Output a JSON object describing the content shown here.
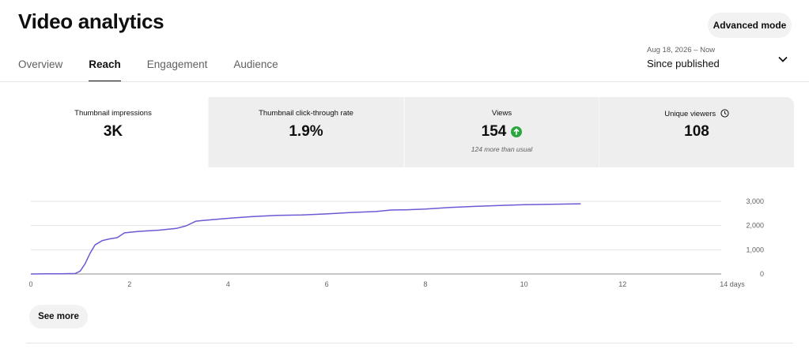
{
  "page": {
    "title": "Video analytics",
    "advanced_mode_label": "Advanced mode"
  },
  "tabs": [
    {
      "label": "Overview",
      "active": false
    },
    {
      "label": "Reach",
      "active": true
    },
    {
      "label": "Engagement",
      "active": false
    },
    {
      "label": "Audience",
      "active": false
    }
  ],
  "date_picker": {
    "range": "Aug 18, 2026 – Now",
    "period": "Since published",
    "icon": "chevron-down-icon"
  },
  "metrics": [
    {
      "label": "Thumbnail impressions",
      "value": "3K",
      "selected": true
    },
    {
      "label": "Thumbnail click-through rate",
      "value": "1.9%",
      "selected": false
    },
    {
      "label": "Views",
      "value": "154",
      "subtext": "124 more than usual",
      "trend_icon": "arrow-up-icon",
      "trend_color": "#2ba640",
      "selected": false
    },
    {
      "label": "Unique viewers",
      "value": "108",
      "info_icon": "clock-icon",
      "selected": false
    }
  ],
  "chart_data": {
    "type": "line",
    "title": "",
    "xlabel": "",
    "ylabel": "",
    "x_unit": "days",
    "x_ticks": [
      "0",
      "2",
      "4",
      "6",
      "8",
      "10",
      "12",
      "14 days"
    ],
    "x_tick_values": [
      0,
      2,
      4,
      6,
      8,
      10,
      12,
      14
    ],
    "y_ticks": [
      "0",
      "1,000",
      "2,000",
      "3,000"
    ],
    "y_tick_values": [
      0,
      1000,
      2000,
      3000
    ],
    "xlim": [
      0,
      14
    ],
    "ylim": [
      0,
      3000
    ],
    "grid": true,
    "y_axis_position": "right",
    "line_color": "#6a5ad4",
    "series": [
      {
        "x": [
          0,
          0.3,
          0.6,
          0.9,
          1.0,
          1.1,
          1.2,
          1.3,
          1.45,
          1.6,
          1.75,
          1.9,
          2.2,
          2.6,
          2.95,
          3.15,
          3.35,
          3.6,
          4.0,
          4.5,
          5.0,
          5.5,
          6.0,
          6.5,
          7.0,
          7.3,
          7.6,
          8.0,
          8.5,
          9.0,
          9.5,
          10.0,
          10.5,
          11.15
        ],
        "y": [
          0,
          5,
          10,
          20,
          120,
          420,
          850,
          1200,
          1380,
          1450,
          1500,
          1700,
          1760,
          1810,
          1880,
          1990,
          2180,
          2230,
          2300,
          2370,
          2420,
          2440,
          2480,
          2540,
          2580,
          2640,
          2650,
          2680,
          2750,
          2790,
          2830,
          2860,
          2880,
          2900
        ]
      }
    ]
  },
  "see_more_label": "See more"
}
